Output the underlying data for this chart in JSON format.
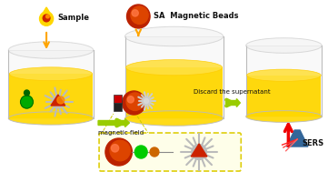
{
  "bg_color": "#ffffff",
  "liquid_color": "#FFD700",
  "beaker_edge": "#CCCCCC",
  "sample_label": "Sample",
  "sa_label": "SA  Magnetic Beads",
  "magnetic_label": "magnetic field",
  "discard_label": "Discard the supernatant",
  "sers_label": "SERS",
  "bead_color_dark": "#BB2200",
  "bead_color_mid": "#DD4400",
  "bead_color_hi": "#FF7744",
  "nanostar_color": "#AAAAAA",
  "nanostar_center": "#CCCCCC",
  "green_dot": "#00BB00",
  "orange_dot": "#FF8800",
  "drop_color": "#FFD700",
  "drop_inner": "#CC2200",
  "drop_inner2": "#FF8800",
  "arrow_orange": "#FFA500",
  "arrow_green": "#99CC00",
  "arrow_grey": "#AAAAAA",
  "arrow_red": "#EE0000",
  "magnet_dark": "#222222",
  "magnet_red": "#CC0000",
  "inset_border": "#DDCC00",
  "inset_bg": "#FEFEE8",
  "prism_color": "#4466AA"
}
